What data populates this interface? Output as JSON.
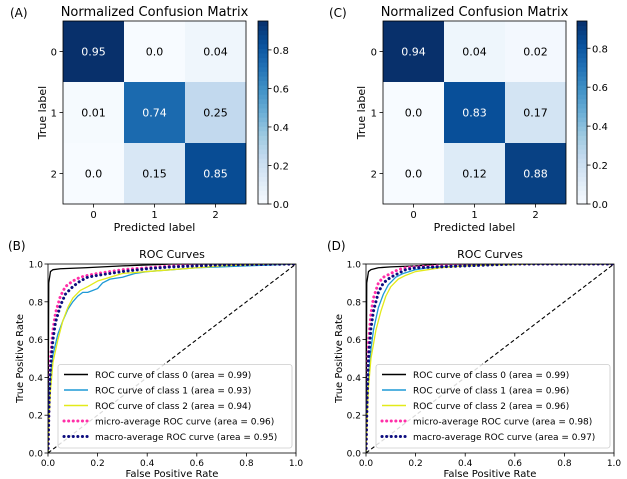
{
  "chart_data": [
    {
      "type": "heatmap",
      "panel_label": "(A)",
      "title": "Normalized Confusion Matrix",
      "xlabel": "Predicted label",
      "ylabel": "True label",
      "categories": [
        "0",
        "1",
        "2"
      ],
      "values": [
        [
          0.95,
          0.0,
          0.04
        ],
        [
          0.01,
          0.74,
          0.25
        ],
        [
          0.0,
          0.15,
          0.85
        ]
      ],
      "cell_labels": [
        [
          "0.95",
          "0.0",
          "0.04"
        ],
        [
          "0.01",
          "0.74",
          "0.25"
        ],
        [
          "0.0",
          "0.15",
          "0.85"
        ]
      ],
      "colorbar": {
        "range": [
          0.0,
          0.95
        ],
        "ticks": [
          0.0,
          0.2,
          0.4,
          0.6,
          0.8
        ],
        "tick_labels": [
          "0.0",
          "0.2",
          "0.4",
          "0.6",
          "0.8"
        ]
      },
      "colormap": [
        "#f7fbff",
        "#deebf7",
        "#c6dbef",
        "#9ecae1",
        "#6baed6",
        "#4292c6",
        "#2171b5",
        "#08519c",
        "#08306b"
      ]
    },
    {
      "type": "heatmap",
      "panel_label": "(C)",
      "title": "Normalized Confusion Matrix",
      "xlabel": "Predicted label",
      "ylabel": "True label",
      "categories": [
        "0",
        "1",
        "2"
      ],
      "values": [
        [
          0.94,
          0.04,
          0.02
        ],
        [
          0.0,
          0.83,
          0.17
        ],
        [
          0.0,
          0.12,
          0.88
        ]
      ],
      "cell_labels": [
        [
          "0.94",
          "0.04",
          "0.02"
        ],
        [
          "0.0",
          "0.83",
          "0.17"
        ],
        [
          "0.0",
          "0.12",
          "0.88"
        ]
      ],
      "colorbar": {
        "range": [
          0.0,
          0.94
        ],
        "ticks": [
          0.0,
          0.2,
          0.4,
          0.6,
          0.8
        ],
        "tick_labels": [
          "0.0",
          "0.2",
          "0.4",
          "0.6",
          "0.8"
        ]
      },
      "colormap": [
        "#f7fbff",
        "#deebf7",
        "#c6dbef",
        "#9ecae1",
        "#6baed6",
        "#4292c6",
        "#2171b5",
        "#08519c",
        "#08306b"
      ]
    },
    {
      "type": "line",
      "panel_label": "(B)",
      "title": "ROC Curves",
      "xlabel": "False Positive Rate",
      "ylabel": "True Positive Rate",
      "xlim": [
        0.0,
        1.0
      ],
      "ylim": [
        0.0,
        1.0
      ],
      "xticks": [
        0.0,
        0.2,
        0.4,
        0.6,
        0.8,
        1.0
      ],
      "yticks": [
        0.0,
        0.2,
        0.4,
        0.6,
        0.8,
        1.0
      ],
      "xtick_labels": [
        "0.0",
        "0.2",
        "0.4",
        "0.6",
        "0.8",
        "1.0"
      ],
      "ytick_labels": [
        "0.0",
        "0.2",
        "0.4",
        "0.6",
        "0.8",
        "1.0"
      ],
      "legend_position": "lower-right",
      "series": [
        {
          "name": "ROC curve of class 0 (area = 0.99)",
          "color": "#000000",
          "style": "solid",
          "x": [
            0,
            0.003,
            0.01,
            0.02,
            0.05,
            0.15,
            0.3,
            0.5,
            0.7,
            1.0
          ],
          "y": [
            0,
            0.9,
            0.96,
            0.97,
            0.975,
            0.98,
            0.99,
            1.0,
            1.0,
            1.0
          ]
        },
        {
          "name": "ROC curve of class 1 (area = 0.93)",
          "color": "#1f9ad6",
          "style": "solid",
          "x": [
            0,
            0.005,
            0.01,
            0.02,
            0.04,
            0.06,
            0.08,
            0.1,
            0.12,
            0.14,
            0.16,
            0.18,
            0.2,
            0.22,
            0.25,
            0.3,
            0.35,
            0.4,
            0.5,
            0.6,
            0.7,
            0.8,
            0.9,
            1.0
          ],
          "y": [
            0,
            0.25,
            0.4,
            0.52,
            0.63,
            0.7,
            0.76,
            0.8,
            0.83,
            0.85,
            0.85,
            0.86,
            0.87,
            0.9,
            0.92,
            0.93,
            0.95,
            0.96,
            0.97,
            0.98,
            0.985,
            0.99,
            0.995,
            1.0
          ]
        },
        {
          "name": "ROC curve of class 2 (area = 0.94)",
          "color": "#e3ea1a",
          "style": "solid",
          "x": [
            0,
            0.005,
            0.01,
            0.02,
            0.04,
            0.06,
            0.08,
            0.1,
            0.13,
            0.16,
            0.2,
            0.25,
            0.3,
            0.4,
            0.5,
            0.6,
            0.7,
            0.8,
            0.9,
            1.0
          ],
          "y": [
            0,
            0.2,
            0.33,
            0.48,
            0.6,
            0.7,
            0.77,
            0.82,
            0.86,
            0.88,
            0.91,
            0.93,
            0.95,
            0.96,
            0.97,
            0.98,
            0.99,
            0.995,
            1.0,
            1.0
          ]
        },
        {
          "name": "micro-average ROC curve (area = 0.96)",
          "color": "#ff2fa8",
          "style": "dotted",
          "x": [
            0,
            0.005,
            0.01,
            0.02,
            0.03,
            0.05,
            0.07,
            0.1,
            0.13,
            0.16,
            0.2,
            0.25,
            0.3,
            0.4,
            0.5,
            0.7,
            1.0
          ],
          "y": [
            0,
            0.35,
            0.5,
            0.65,
            0.74,
            0.83,
            0.88,
            0.91,
            0.93,
            0.94,
            0.95,
            0.96,
            0.97,
            0.98,
            0.99,
            1.0,
            1.0
          ]
        },
        {
          "name": "macro-average ROC curve (area = 0.95)",
          "color": "#0d0d7f",
          "style": "dotted",
          "x": [
            0,
            0.005,
            0.01,
            0.02,
            0.03,
            0.05,
            0.07,
            0.1,
            0.13,
            0.16,
            0.2,
            0.25,
            0.3,
            0.4,
            0.5,
            0.7,
            1.0
          ],
          "y": [
            0,
            0.3,
            0.45,
            0.6,
            0.69,
            0.78,
            0.84,
            0.88,
            0.91,
            0.93,
            0.94,
            0.95,
            0.96,
            0.975,
            0.985,
            0.995,
            1.0
          ]
        },
        {
          "name": "",
          "color": "#000000",
          "style": "dashed",
          "x": [
            0,
            1
          ],
          "y": [
            0,
            1
          ]
        }
      ]
    },
    {
      "type": "line",
      "panel_label": "(D)",
      "title": "ROC Curves",
      "xlabel": "False Positive Rate",
      "ylabel": "True Positive Rate",
      "xlim": [
        0.0,
        1.0
      ],
      "ylim": [
        0.0,
        1.0
      ],
      "xticks": [
        0.0,
        0.2,
        0.4,
        0.6,
        0.8,
        1.0
      ],
      "yticks": [
        0.0,
        0.2,
        0.4,
        0.6,
        0.8,
        1.0
      ],
      "xtick_labels": [
        "0.0",
        "0.2",
        "0.4",
        "0.6",
        "0.8",
        "1.0"
      ],
      "ytick_labels": [
        "0.0",
        "0.2",
        "0.4",
        "0.6",
        "0.8",
        "1.0"
      ],
      "legend_position": "lower-right",
      "series": [
        {
          "name": "ROC curve of class 0 (area = 0.99)",
          "color": "#000000",
          "style": "solid",
          "x": [
            0,
            0.003,
            0.01,
            0.02,
            0.05,
            0.1,
            0.2,
            0.3,
            0.5,
            1.0
          ],
          "y": [
            0,
            0.9,
            0.96,
            0.97,
            0.98,
            0.985,
            0.99,
            1.0,
            1.0,
            1.0
          ]
        },
        {
          "name": "ROC curve of class 1 (area = 0.96)",
          "color": "#1f9ad6",
          "style": "solid",
          "x": [
            0,
            0.005,
            0.01,
            0.02,
            0.03,
            0.05,
            0.07,
            0.09,
            0.12,
            0.15,
            0.2,
            0.25,
            0.3,
            0.4,
            0.5,
            0.7,
            1.0
          ],
          "y": [
            0,
            0.25,
            0.4,
            0.55,
            0.65,
            0.77,
            0.84,
            0.89,
            0.93,
            0.95,
            0.97,
            0.98,
            0.985,
            0.99,
            0.995,
            1.0,
            1.0
          ]
        },
        {
          "name": "ROC curve of class 2 (area = 0.96)",
          "color": "#e3ea1a",
          "style": "solid",
          "x": [
            0,
            0.005,
            0.01,
            0.02,
            0.04,
            0.06,
            0.08,
            0.1,
            0.13,
            0.16,
            0.2,
            0.25,
            0.3,
            0.4,
            0.5,
            0.7,
            1.0
          ],
          "y": [
            0,
            0.2,
            0.35,
            0.5,
            0.65,
            0.75,
            0.83,
            0.88,
            0.92,
            0.94,
            0.96,
            0.97,
            0.98,
            0.99,
            0.995,
            1.0,
            1.0
          ]
        },
        {
          "name": "micro-average ROC curve (area = 0.98)",
          "color": "#ff2fa8",
          "style": "dotted",
          "x": [
            0,
            0.005,
            0.01,
            0.02,
            0.03,
            0.05,
            0.07,
            0.1,
            0.13,
            0.16,
            0.2,
            0.3,
            0.4,
            0.6,
            1.0
          ],
          "y": [
            0,
            0.4,
            0.58,
            0.74,
            0.82,
            0.9,
            0.93,
            0.95,
            0.97,
            0.98,
            0.985,
            0.99,
            0.995,
            1.0,
            1.0
          ]
        },
        {
          "name": "macro-average ROC curve (area = 0.97)",
          "color": "#0d0d7f",
          "style": "dotted",
          "x": [
            0,
            0.005,
            0.01,
            0.02,
            0.03,
            0.05,
            0.07,
            0.1,
            0.13,
            0.16,
            0.2,
            0.3,
            0.4,
            0.6,
            1.0
          ],
          "y": [
            0,
            0.32,
            0.5,
            0.66,
            0.75,
            0.85,
            0.9,
            0.93,
            0.95,
            0.97,
            0.98,
            0.985,
            0.99,
            1.0,
            1.0
          ]
        },
        {
          "name": "",
          "color": "#000000",
          "style": "dashed",
          "x": [
            0,
            1
          ],
          "y": [
            0,
            1
          ]
        }
      ]
    }
  ]
}
